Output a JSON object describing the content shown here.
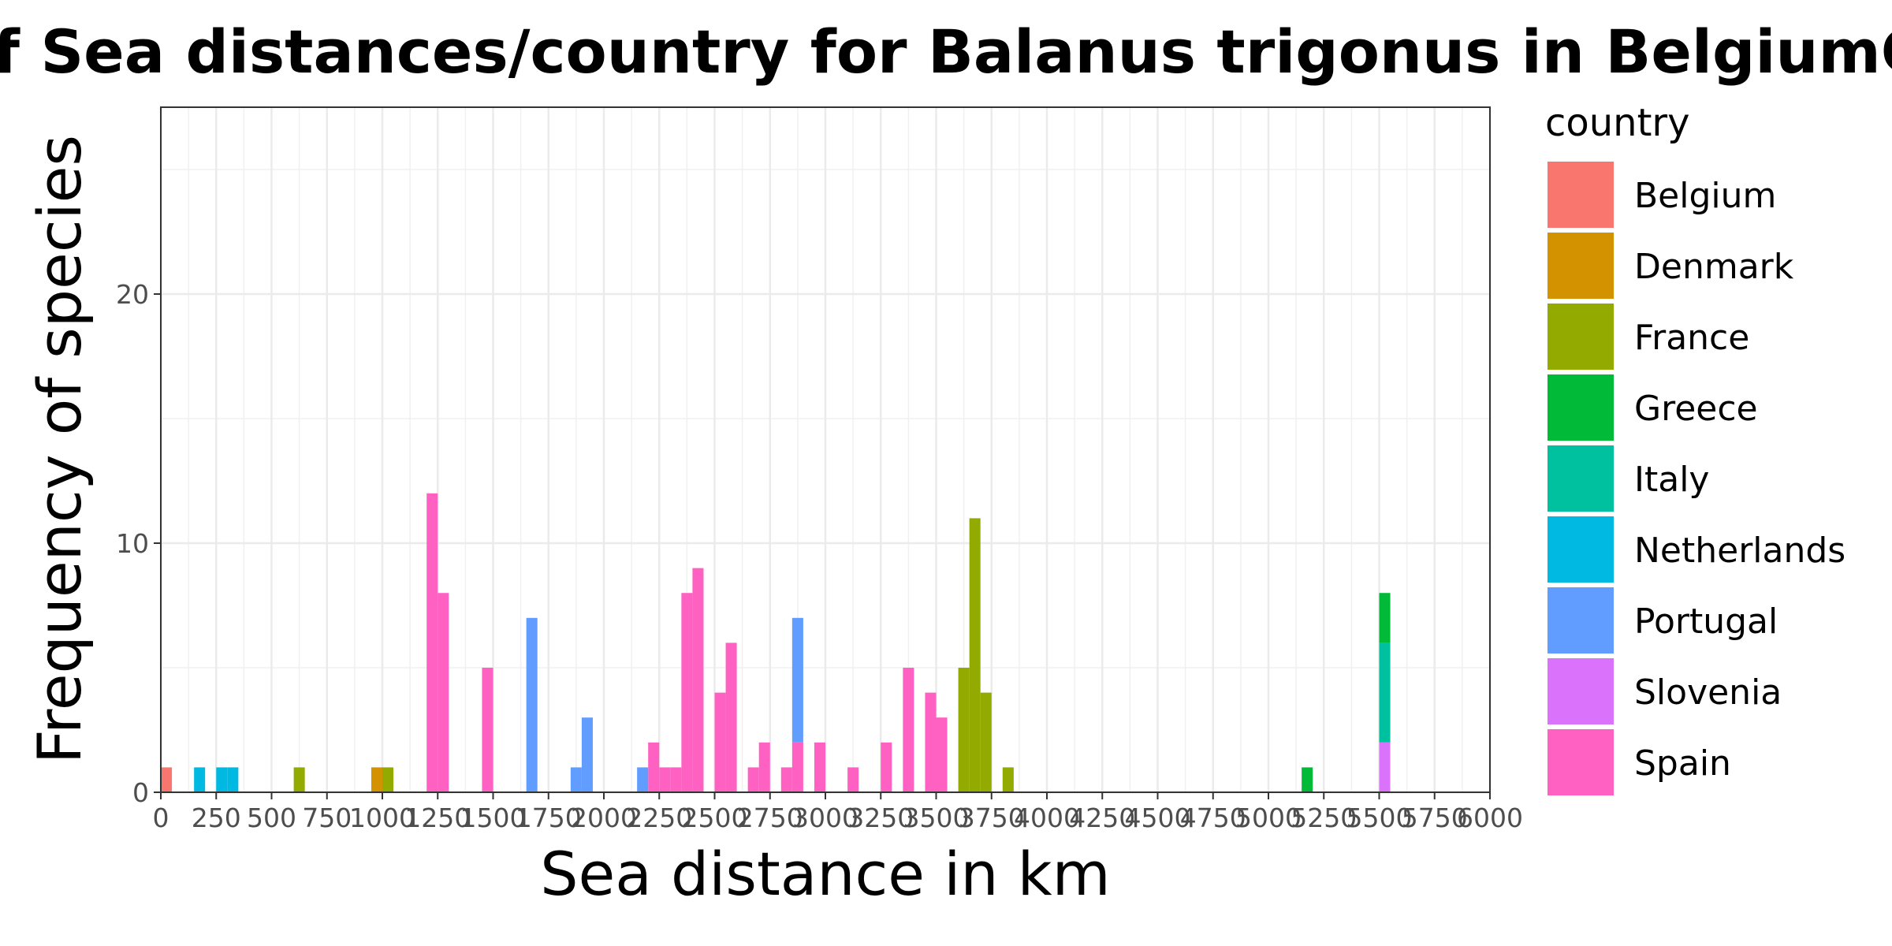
{
  "chart_data": {
    "type": "bar",
    "stacked": true,
    "title": "Histogram of Sea distances/country for Balanus trigonus in BelgiumCoast",
    "xlabel": "Sea distance in km",
    "ylabel": "Frequency of species",
    "xlim": [
      0,
      6000
    ],
    "ylim": [
      0,
      27.5
    ],
    "bin_width": 50,
    "x_ticks": [
      0,
      250,
      500,
      750,
      1000,
      1250,
      1500,
      1750,
      2000,
      2250,
      2500,
      2750,
      3000,
      3250,
      3500,
      3750,
      4000,
      4250,
      4500,
      4750,
      5000,
      5250,
      5500,
      5750,
      6000
    ],
    "x_tick_labels": [
      "0",
      "250",
      "500",
      "750",
      "1000",
      "1250",
      "1500",
      "1750",
      "2000",
      "2250",
      "2500",
      "2750",
      "3000",
      "3250",
      "3500",
      "3750",
      "4000",
      "4250",
      "4500",
      "4750",
      "5000",
      "5250",
      "5500",
      "5750",
      "6000"
    ],
    "y_ticks": [
      0,
      10,
      20
    ],
    "y_tick_labels": [
      "0",
      "10",
      "20"
    ],
    "grid": true,
    "legend": {
      "title": "country",
      "position": "right"
    },
    "series": [
      {
        "name": "Belgium",
        "color": "#F8766D",
        "bins": [
          [
            0,
            1
          ]
        ]
      },
      {
        "name": "Denmark",
        "color": "#D39200",
        "bins": [
          [
            950,
            1
          ]
        ]
      },
      {
        "name": "France",
        "color": "#93AA00",
        "bins": [
          [
            600,
            1
          ],
          [
            1000,
            1
          ],
          [
            3600,
            5
          ],
          [
            3650,
            11
          ],
          [
            3700,
            4
          ],
          [
            3800,
            1
          ]
        ]
      },
      {
        "name": "Greece",
        "color": "#00BA38",
        "bins": [
          [
            5150,
            1
          ],
          [
            5500,
            2
          ]
        ]
      },
      {
        "name": "Italy",
        "color": "#00C19F",
        "bins": [
          [
            5500,
            4
          ]
        ]
      },
      {
        "name": "Netherlands",
        "color": "#00B9E3",
        "bins": [
          [
            150,
            1
          ],
          [
            250,
            1
          ],
          [
            300,
            1
          ]
        ]
      },
      {
        "name": "Portugal",
        "color": "#619CFF",
        "bins": [
          [
            1650,
            7
          ],
          [
            1850,
            1
          ],
          [
            1900,
            3
          ],
          [
            2150,
            1
          ],
          [
            2850,
            5
          ]
        ]
      },
      {
        "name": "Slovenia",
        "color": "#DB72FB",
        "bins": [
          [
            5500,
            2
          ]
        ]
      },
      {
        "name": "Spain",
        "color": "#FF61C3",
        "bins": [
          [
            1200,
            12
          ],
          [
            1250,
            8
          ],
          [
            1450,
            5
          ],
          [
            2200,
            2
          ],
          [
            2250,
            1
          ],
          [
            2300,
            1
          ],
          [
            2350,
            8
          ],
          [
            2400,
            9
          ],
          [
            2500,
            4
          ],
          [
            2550,
            6
          ],
          [
            2650,
            1
          ],
          [
            2700,
            2
          ],
          [
            2800,
            1
          ],
          [
            2850,
            2
          ],
          [
            2950,
            2
          ],
          [
            3100,
            1
          ],
          [
            3250,
            2
          ],
          [
            3350,
            5
          ],
          [
            3450,
            4
          ],
          [
            3500,
            3
          ]
        ]
      }
    ]
  }
}
